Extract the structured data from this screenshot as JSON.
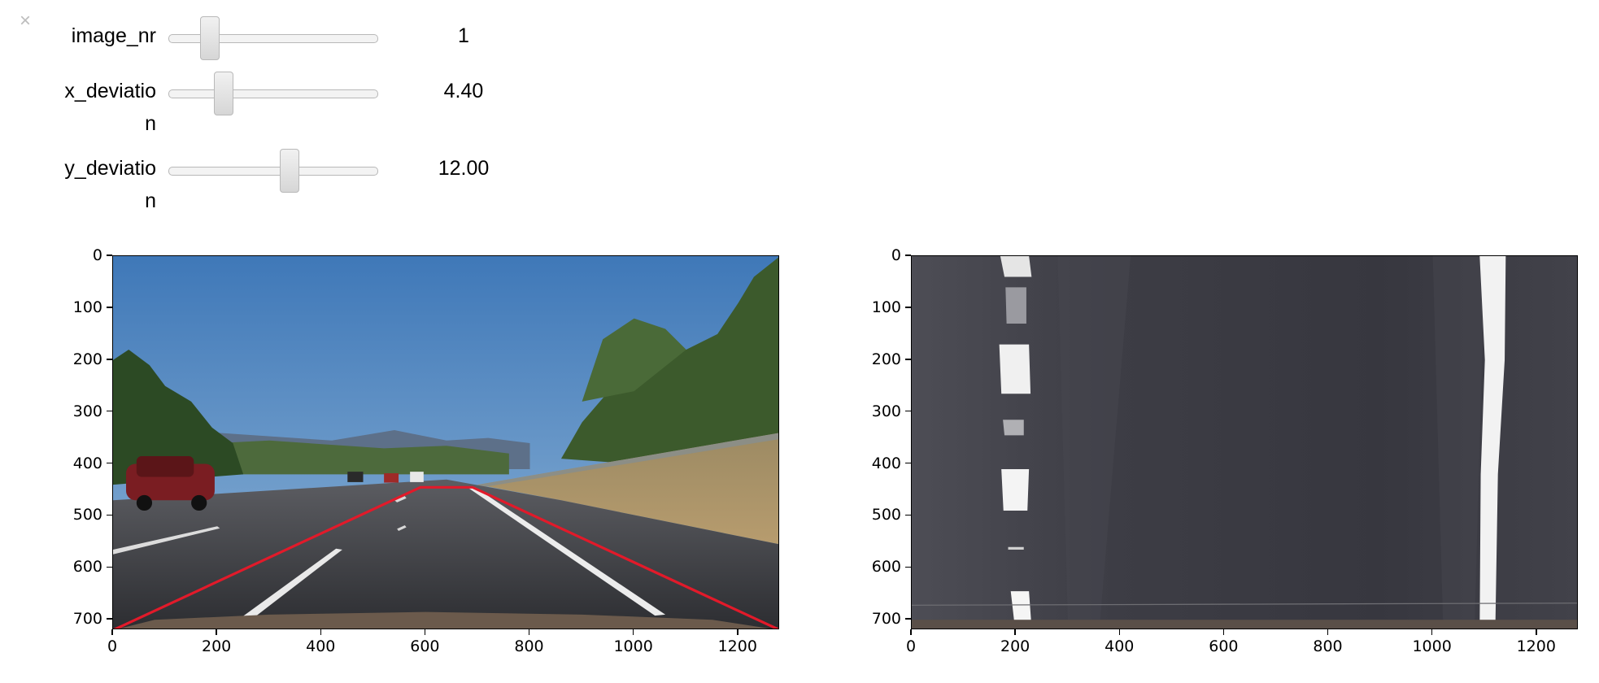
{
  "controls": {
    "close_glyph": "×",
    "sliders": [
      {
        "label_line1": "image_nr",
        "label_line2": "",
        "value_text": "1",
        "fraction": 0.17
      },
      {
        "label_line1": "x_deviatio",
        "label_line2": "n",
        "value_text": "4.40",
        "fraction": 0.24
      },
      {
        "label_line1": "y_deviatio",
        "label_line2": "n",
        "value_text": "12.00",
        "fraction": 0.59
      }
    ]
  },
  "plots": [
    {
      "name": "original-road-image",
      "x_ticks": [
        "0",
        "200",
        "400",
        "600",
        "800",
        "1000",
        "1200"
      ],
      "y_ticks": [
        "0",
        "100",
        "200",
        "300",
        "400",
        "500",
        "600",
        "700"
      ],
      "xlim": [
        0,
        1280
      ],
      "ylim": [
        0,
        720
      ],
      "roi_polygon": [
        [
          0,
          720
        ],
        [
          590,
          445
        ],
        [
          690,
          445
        ],
        [
          1280,
          720
        ]
      ],
      "roi_color": "#e21a2a"
    },
    {
      "name": "birds-eye-warped-image",
      "x_ticks": [
        "0",
        "200",
        "400",
        "600",
        "800",
        "1000",
        "1200"
      ],
      "y_ticks": [
        "0",
        "100",
        "200",
        "300",
        "400",
        "500",
        "600",
        "700"
      ],
      "xlim": [
        0,
        1280
      ],
      "ylim": [
        0,
        720
      ]
    }
  ]
}
